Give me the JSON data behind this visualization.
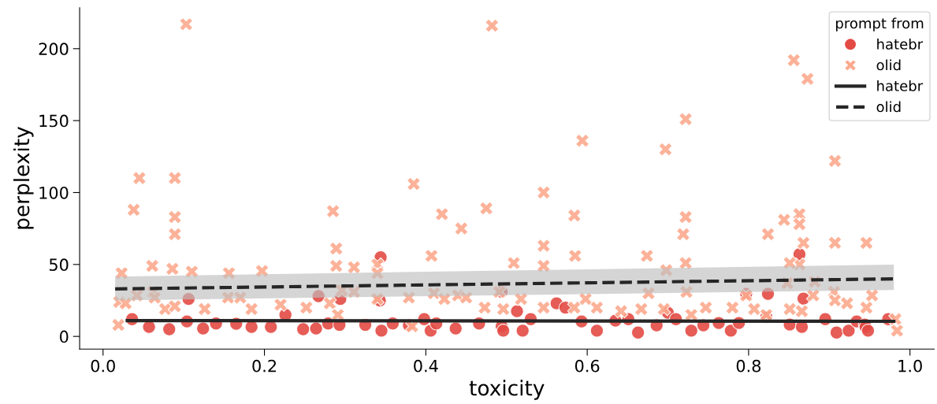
{
  "chart_data": {
    "type": "scatter",
    "xlabel": "toxicity",
    "ylabel": "perplexity",
    "legend_title": "prompt from",
    "legend": "top right",
    "grid": false,
    "xlim": [
      -0.029,
      1.03
    ],
    "ylim": [
      -8.8,
      228.5
    ],
    "xticks": [
      {
        "value": 0,
        "label": "0.0"
      },
      {
        "value": 0.2,
        "label": "0.2"
      },
      {
        "value": 0.4,
        "label": "0.4"
      },
      {
        "value": 0.6,
        "label": "0.6"
      },
      {
        "value": 0.8,
        "label": "0.8"
      },
      {
        "value": 1,
        "label": "1.0"
      }
    ],
    "yticks": [
      0,
      50,
      100,
      150,
      200
    ],
    "series": [
      {
        "name": "hatebr",
        "marker": "circle",
        "color": "#e34a44",
        "x": [
          0.036,
          0.057,
          0.082,
          0.104,
          0.106,
          0.124,
          0.14,
          0.165,
          0.184,
          0.208,
          0.226,
          0.248,
          0.264,
          0.267,
          0.279,
          0.293,
          0.294,
          0.325,
          0.343,
          0.344,
          0.345,
          0.359,
          0.379,
          0.398,
          0.406,
          0.413,
          0.437,
          0.466,
          0.494,
          0.494,
          0.496,
          0.513,
          0.52,
          0.53,
          0.562,
          0.573,
          0.593,
          0.612,
          0.635,
          0.651,
          0.663,
          0.686,
          0.7,
          0.71,
          0.729,
          0.744,
          0.763,
          0.778,
          0.788,
          0.797,
          0.822,
          0.824,
          0.851,
          0.863,
          0.866,
          0.868,
          0.895,
          0.909,
          0.924,
          0.934,
          0.944,
          0.945,
          0.948,
          0.973
        ],
        "values": [
          12,
          6.6,
          5,
          10.4,
          26,
          5.5,
          9,
          8.8,
          6.6,
          6.6,
          15,
          5,
          5.5,
          28,
          9,
          8,
          26,
          8,
          25,
          55,
          4,
          9,
          7.7,
          12,
          4,
          9,
          5.5,
          9,
          7,
          31,
          4,
          17.5,
          4,
          12,
          23,
          20,
          10.4,
          4,
          11,
          12,
          2.7,
          7.7,
          16.4,
          12,
          4,
          7.7,
          9.3,
          4,
          9.3,
          29.6,
          13.7,
          29.6,
          8.2,
          57,
          6.6,
          26.3,
          12,
          2.7,
          4,
          10.4,
          8.2,
          6.6,
          4,
          12
        ]
      },
      {
        "name": "olid",
        "marker": "cross",
        "color": "#fcaa8e",
        "x": [
          0.103,
          0.482,
          0.856,
          0.873,
          0.722,
          0.907,
          0.594,
          0.697,
          0.045,
          0.089,
          0.038,
          0.089,
          0.089,
          0.285,
          0.385,
          0.42,
          0.444,
          0.475,
          0.546,
          0.584,
          0.546,
          0.546,
          0.407,
          0.585,
          0.509,
          0.674,
          0.698,
          0.722,
          0.719,
          0.722,
          0.844,
          0.863,
          0.863,
          0.824,
          0.868,
          0.907,
          0.946,
          0.863,
          0.851,
          0.023,
          0.061,
          0.086,
          0.11,
          0.156,
          0.197,
          0.289,
          0.289,
          0.311,
          0.34,
          0.34,
          0.019,
          0.02,
          0.028,
          0.042,
          0.062,
          0.064,
          0.077,
          0.089,
          0.126,
          0.155,
          0.17,
          0.184,
          0.22,
          0.252,
          0.281,
          0.291,
          0.296,
          0.311,
          0.34,
          0.379,
          0.383,
          0.41,
          0.423,
          0.44,
          0.45,
          0.473,
          0.491,
          0.496,
          0.518,
          0.546,
          0.584,
          0.598,
          0.612,
          0.642,
          0.667,
          0.676,
          0.695,
          0.723,
          0.729,
          0.747,
          0.78,
          0.797,
          0.807,
          0.822,
          0.851,
          0.866,
          0.88,
          0.906,
          0.922,
          0.946,
          0.953,
          0.982,
          0.984,
          0.848,
          0.882,
          0.907
        ],
        "values": [
          217,
          216,
          192,
          179,
          151,
          122,
          136,
          130,
          110,
          110,
          88,
          83,
          71,
          87,
          106,
          85,
          75,
          89,
          100,
          84,
          63,
          49,
          56,
          56,
          51,
          56,
          46,
          83,
          71,
          51,
          81,
          85,
          78,
          71,
          65,
          65,
          65,
          50,
          51,
          44,
          49,
          47,
          45,
          44,
          45.5,
          61,
          49,
          48,
          50,
          44,
          8,
          24,
          23,
          28.5,
          31,
          27,
          19,
          21,
          19,
          27,
          27,
          19,
          22,
          20,
          23,
          15,
          32,
          31,
          26,
          27,
          7,
          30,
          26,
          28.5,
          27,
          20,
          31,
          19,
          26,
          20,
          20,
          26,
          20,
          17.5,
          19,
          30,
          19,
          31,
          15,
          20,
          20,
          28.5,
          19,
          15,
          19,
          17.5,
          28.5,
          31,
          23,
          20,
          28.5,
          12,
          4,
          37,
          38,
          25
        ]
      },
      {
        "name": "hatebr",
        "type": "line",
        "line_style": "solid",
        "color": "#262626",
        "x": [
          0.03,
          0.98
        ],
        "values": [
          11,
          10.5
        ]
      },
      {
        "name": "olid",
        "type": "line",
        "line_style": "dashed",
        "color": "#262626",
        "x": [
          0.015,
          0.98
        ],
        "values": [
          33,
          40
        ],
        "lower": [
          25,
          32.3
        ],
        "upper": [
          41.6,
          49.9
        ]
      }
    ]
  }
}
